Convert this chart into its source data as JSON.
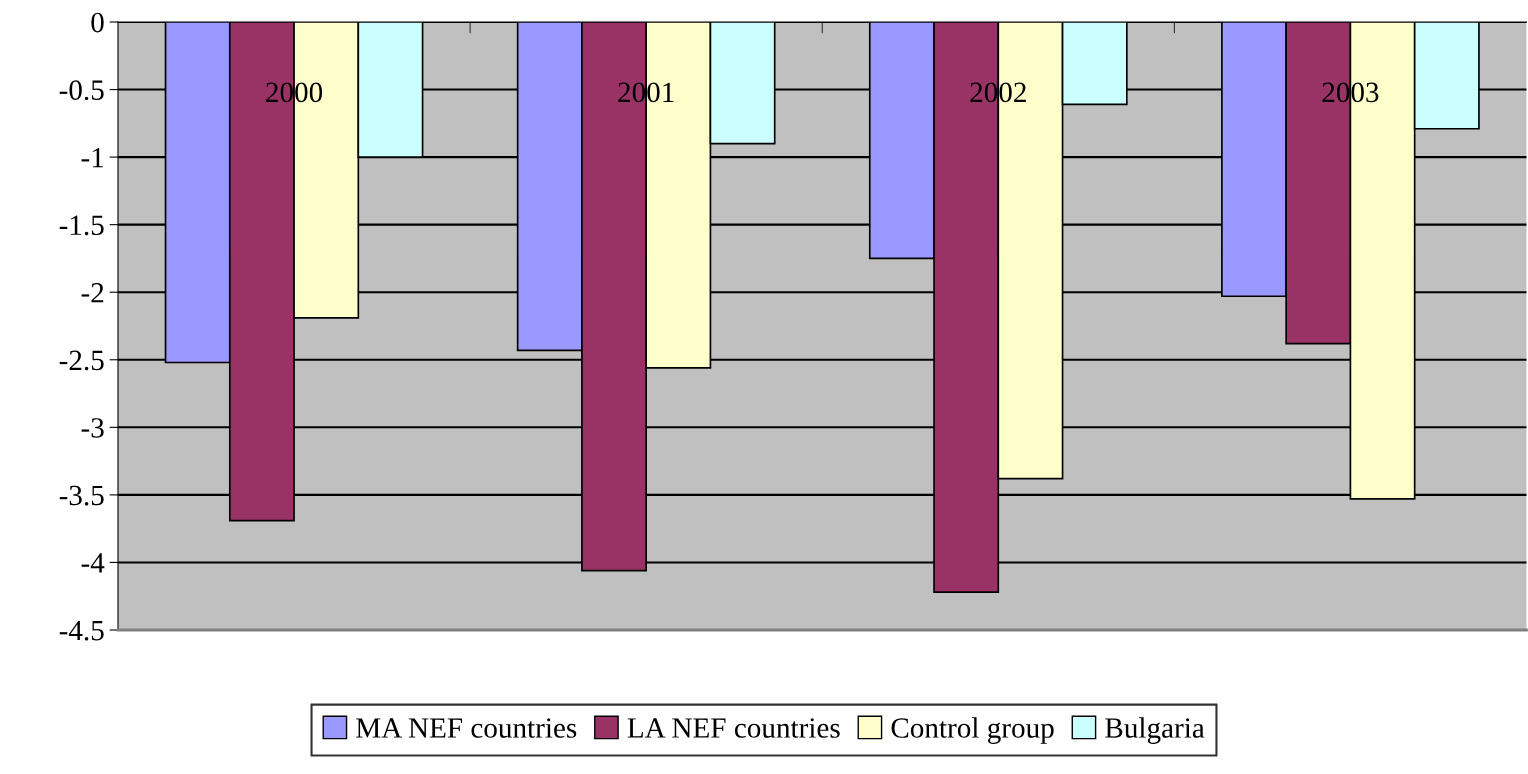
{
  "chart_data": {
    "type": "bar",
    "categories": [
      "2000",
      "2001",
      "2002",
      "2003"
    ],
    "series": [
      {
        "name": "MA NEF countries",
        "color": "#9999ff",
        "values": [
          -2.52,
          -2.43,
          -1.75,
          -2.03
        ]
      },
      {
        "name": "LA NEF countries",
        "color": "#993366",
        "values": [
          -3.69,
          -4.06,
          -4.22,
          -2.38
        ]
      },
      {
        "name": "Control group",
        "color": "#ffffcc",
        "values": [
          -2.19,
          -2.56,
          -3.38,
          -3.53
        ]
      },
      {
        "name": "Bulgaria",
        "color": "#ccffff",
        "values": [
          -1.0,
          -0.9,
          -0.61,
          -0.79
        ]
      }
    ],
    "ylim": [
      -4.5,
      0
    ],
    "yticks": [
      0,
      -0.5,
      -1,
      -1.5,
      -2,
      -2.5,
      -3,
      -3.5,
      -4,
      -4.5
    ],
    "grid": "y",
    "legend": "bottom"
  }
}
